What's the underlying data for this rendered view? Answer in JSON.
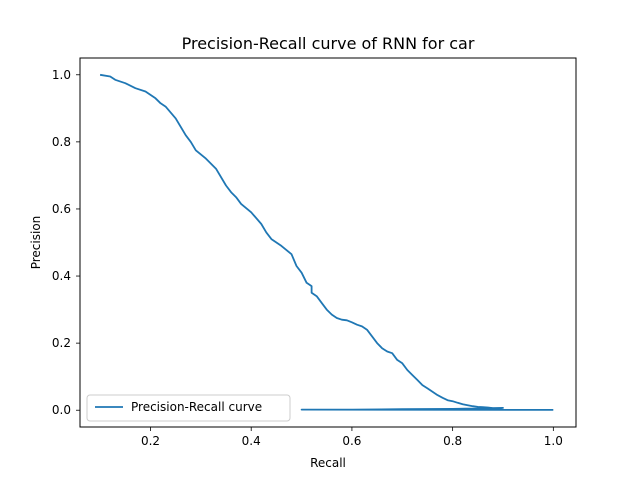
{
  "chart_data": {
    "type": "line",
    "title": "Precision-Recall curve of RNN for car",
    "xlabel": "Recall",
    "ylabel": "Precision",
    "xlim": [
      0.06,
      1.045
    ],
    "ylim": [
      -0.05,
      1.05
    ],
    "xticks": [
      0.2,
      0.4,
      0.6,
      0.8,
      1.0
    ],
    "xtick_labels": [
      "0.2",
      "0.4",
      "0.6",
      "0.8",
      "1.0"
    ],
    "yticks": [
      0.0,
      0.2,
      0.4,
      0.6,
      0.8,
      1.0
    ],
    "ytick_labels": [
      "0.0",
      "0.2",
      "0.4",
      "0.6",
      "0.8",
      "1.0"
    ],
    "grid": false,
    "legend_position": "lower-left",
    "series": [
      {
        "name": "Precision-Recall curve",
        "color": "#1f77b4",
        "x": [
          0.1,
          0.12,
          0.13,
          0.15,
          0.17,
          0.19,
          0.21,
          0.22,
          0.23,
          0.25,
          0.27,
          0.28,
          0.29,
          0.31,
          0.33,
          0.35,
          0.36,
          0.37,
          0.38,
          0.4,
          0.42,
          0.43,
          0.44,
          0.45,
          0.46,
          0.48,
          0.49,
          0.5,
          0.51,
          0.52,
          0.52,
          0.53,
          0.54,
          0.55,
          0.56,
          0.57,
          0.58,
          0.59,
          0.6,
          0.61,
          0.62,
          0.63,
          0.64,
          0.65,
          0.66,
          0.67,
          0.68,
          0.69,
          0.7,
          0.71,
          0.72,
          0.73,
          0.74,
          0.75,
          0.76,
          0.77,
          0.78,
          0.79,
          0.8,
          0.81,
          0.82,
          0.83,
          0.84,
          0.85,
          0.86,
          0.87,
          0.88,
          0.89,
          0.9,
          0.8,
          0.7,
          0.6,
          0.5,
          1.0
        ],
        "y": [
          1.0,
          0.995,
          0.985,
          0.975,
          0.96,
          0.95,
          0.93,
          0.915,
          0.905,
          0.87,
          0.82,
          0.8,
          0.775,
          0.75,
          0.72,
          0.67,
          0.65,
          0.635,
          0.615,
          0.59,
          0.555,
          0.53,
          0.51,
          0.5,
          0.49,
          0.465,
          0.43,
          0.41,
          0.38,
          0.37,
          0.35,
          0.34,
          0.32,
          0.3,
          0.285,
          0.275,
          0.27,
          0.268,
          0.262,
          0.255,
          0.25,
          0.24,
          0.22,
          0.2,
          0.185,
          0.175,
          0.17,
          0.15,
          0.14,
          0.12,
          0.105,
          0.09,
          0.075,
          0.065,
          0.055,
          0.045,
          0.037,
          0.03,
          0.027,
          0.022,
          0.018,
          0.015,
          0.012,
          0.01,
          0.009,
          0.008,
          0.006,
          0.005,
          0.007,
          0.004,
          0.003,
          0.002,
          0.002,
          0.001
        ]
      }
    ]
  }
}
